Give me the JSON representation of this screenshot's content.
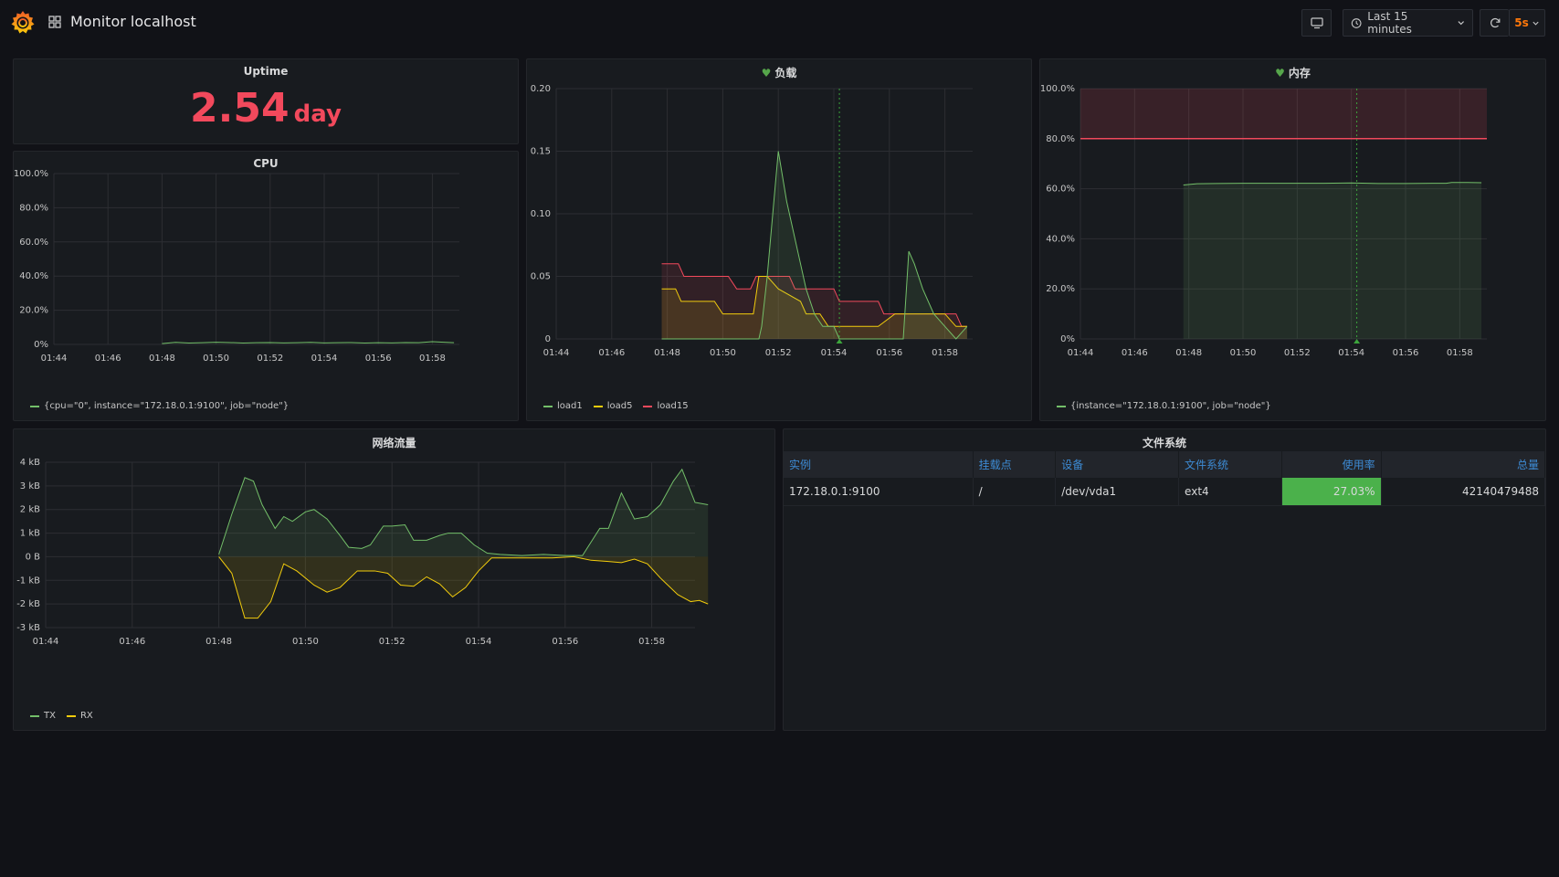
{
  "dashboard": {
    "title": "Monitor localhost",
    "time_range": "Last 15 minutes",
    "refresh": "5s"
  },
  "icons": [
    "grafana-logo-icon",
    "dashboards-grid-icon",
    "tv-mode-icon",
    "clock-icon",
    "chevron-down-icon",
    "refresh-icon"
  ],
  "colors": {
    "green": "#73bf69",
    "yellow": "#f2cc0c",
    "red": "#f2495c",
    "gauge_green": "#4bb14b",
    "link_blue": "#3d8bd4"
  },
  "uptime": {
    "title": "Uptime",
    "value": "2.54",
    "unit": "day"
  },
  "cpu": {
    "title": "CPU"
  },
  "load": {
    "title": "负载"
  },
  "memory": {
    "title": "内存"
  },
  "network": {
    "title": "网络流量"
  },
  "filesystem": {
    "title": "文件系统",
    "columns": [
      "实例",
      "挂载点",
      "设备",
      "文件系统",
      "使用率",
      "总量"
    ],
    "rows": [
      {
        "instance": "172.18.0.1:9100",
        "mountpoint": "/",
        "device": "/dev/vda1",
        "fstype": "ext4",
        "usage": "27.03%",
        "usage_fraction": 0.2703,
        "total": "42140479488"
      }
    ]
  },
  "chart_data": [
    {
      "id": "cpu",
      "type": "line",
      "title": "CPU",
      "x": [
        "01:44",
        "01:46",
        "01:48",
        "01:50",
        "01:52",
        "01:54",
        "01:56",
        "01:58"
      ],
      "y_ticks": [
        "0%",
        "20.0%",
        "40.0%",
        "60.0%",
        "80.0%",
        "100.0%"
      ],
      "ylim": [
        0,
        100
      ],
      "xlim": [
        0,
        15
      ],
      "grid": true,
      "legend_position": "bottom-left",
      "series": [
        {
          "name": "{cpu=\"0\", instance=\"172.18.0.1:9100\", job=\"node\"}",
          "color": "#73bf69",
          "points": [
            [
              4,
              0.5
            ],
            [
              4.5,
              1.2
            ],
            [
              5,
              0.8
            ],
            [
              5.5,
              1.0
            ],
            [
              6,
              1.3
            ],
            [
              6.5,
              1.1
            ],
            [
              7,
              0.8
            ],
            [
              7.5,
              1.0
            ],
            [
              8,
              1.1
            ],
            [
              8.5,
              0.9
            ],
            [
              9,
              1.0
            ],
            [
              9.5,
              1.2
            ],
            [
              10,
              0.9
            ],
            [
              10.5,
              1.0
            ],
            [
              11,
              1.1
            ],
            [
              11.5,
              0.8
            ],
            [
              12,
              1.0
            ],
            [
              12.5,
              0.9
            ],
            [
              13,
              1.1
            ],
            [
              13.5,
              1.0
            ],
            [
              14,
              1.6
            ],
            [
              14.5,
              1.2
            ],
            [
              14.8,
              1.0
            ]
          ]
        }
      ]
    },
    {
      "id": "load",
      "type": "area",
      "title": "负载",
      "x": [
        "01:44",
        "01:46",
        "01:48",
        "01:50",
        "01:52",
        "01:54",
        "01:56",
        "01:58"
      ],
      "y_ticks": [
        "0",
        "0.05",
        "0.10",
        "0.15",
        "0.20"
      ],
      "ylim": [
        0,
        0.2
      ],
      "xlim": [
        0,
        15
      ],
      "grid": true,
      "legend_position": "bottom-left",
      "series": [
        {
          "name": "load1",
          "color": "#73bf69",
          "points": [
            [
              3.8,
              0
            ],
            [
              7.3,
              0
            ],
            [
              7.4,
              0.01
            ],
            [
              7.6,
              0.05
            ],
            [
              7.8,
              0.1
            ],
            [
              8.0,
              0.15
            ],
            [
              8.3,
              0.11
            ],
            [
              8.8,
              0.06
            ],
            [
              9.0,
              0.04
            ],
            [
              9.3,
              0.02
            ],
            [
              9.6,
              0.01
            ],
            [
              10,
              0.01
            ],
            [
              10.2,
              0
            ],
            [
              12.5,
              0
            ],
            [
              12.7,
              0.07
            ],
            [
              12.9,
              0.06
            ],
            [
              13.2,
              0.04
            ],
            [
              13.6,
              0.02
            ],
            [
              14,
              0.01
            ],
            [
              14.4,
              0
            ],
            [
              14.8,
              0.01
            ]
          ]
        },
        {
          "name": "load5",
          "color": "#f2cc0c",
          "points": [
            [
              3.8,
              0.04
            ],
            [
              4.3,
              0.04
            ],
            [
              4.5,
              0.03
            ],
            [
              5.7,
              0.03
            ],
            [
              6.0,
              0.02
            ],
            [
              7.1,
              0.02
            ],
            [
              7.3,
              0.05
            ],
            [
              7.6,
              0.05
            ],
            [
              8.0,
              0.04
            ],
            [
              8.8,
              0.03
            ],
            [
              9.0,
              0.02
            ],
            [
              9.5,
              0.02
            ],
            [
              9.8,
              0.01
            ],
            [
              11,
              0.01
            ],
            [
              11.6,
              0.01
            ],
            [
              12.2,
              0.02
            ],
            [
              14,
              0.02
            ],
            [
              14.4,
              0.01
            ],
            [
              14.8,
              0.01
            ]
          ]
        },
        {
          "name": "load15",
          "color": "#f2495c",
          "points": [
            [
              3.8,
              0.06
            ],
            [
              4.4,
              0.06
            ],
            [
              4.6,
              0.05
            ],
            [
              6.2,
              0.05
            ],
            [
              6.5,
              0.04
            ],
            [
              7.0,
              0.04
            ],
            [
              7.2,
              0.05
            ],
            [
              8.4,
              0.05
            ],
            [
              8.6,
              0.04
            ],
            [
              10,
              0.04
            ],
            [
              10.2,
              0.03
            ],
            [
              11.6,
              0.03
            ],
            [
              11.8,
              0.02
            ],
            [
              14.4,
              0.02
            ],
            [
              14.6,
              0.01
            ],
            [
              14.8,
              0.01
            ]
          ]
        }
      ]
    },
    {
      "id": "memory",
      "type": "area",
      "title": "内存",
      "x": [
        "01:44",
        "01:46",
        "01:48",
        "01:50",
        "01:52",
        "01:54",
        "01:56",
        "01:58"
      ],
      "y_ticks": [
        "0%",
        "20.0%",
        "40.0%",
        "60.0%",
        "80.0%",
        "100.0%"
      ],
      "ylim": [
        0,
        100
      ],
      "xlim": [
        0,
        15
      ],
      "threshold": 80,
      "grid": true,
      "legend_position": "bottom-left",
      "series": [
        {
          "name": "{instance=\"172.18.0.1:9100\", job=\"node\"}",
          "color": "#73bf69",
          "points": [
            [
              3.8,
              61.5
            ],
            [
              4.3,
              62
            ],
            [
              5,
              62.1
            ],
            [
              6,
              62.2
            ],
            [
              7,
              62.2
            ],
            [
              8,
              62.2
            ],
            [
              9,
              62.2
            ],
            [
              10,
              62.3
            ],
            [
              11,
              62.1
            ],
            [
              12,
              62.1
            ],
            [
              13,
              62.2
            ],
            [
              13.5,
              62.2
            ],
            [
              13.7,
              62.5
            ],
            [
              14.3,
              62.5
            ],
            [
              14.8,
              62.4
            ]
          ]
        }
      ]
    },
    {
      "id": "network",
      "type": "area",
      "title": "网络流量",
      "x": [
        "01:44",
        "01:46",
        "01:48",
        "01:50",
        "01:52",
        "01:54",
        "01:56",
        "01:58"
      ],
      "y_ticks": [
        "-3 kB",
        "-2 kB",
        "-1 kB",
        "0 B",
        "1 kB",
        "2 kB",
        "3 kB",
        "4 kB"
      ],
      "ylim": [
        -3,
        4
      ],
      "xlim": [
        0,
        15
      ],
      "grid": true,
      "legend_position": "bottom-left",
      "series": [
        {
          "name": "TX",
          "color": "#73bf69",
          "points": [
            [
              4.0,
              0.1
            ],
            [
              4.3,
              1.8
            ],
            [
              4.6,
              3.35
            ],
            [
              4.8,
              3.2
            ],
            [
              5.0,
              2.2
            ],
            [
              5.3,
              1.2
            ],
            [
              5.5,
              1.7
            ],
            [
              5.7,
              1.5
            ],
            [
              6.0,
              1.9
            ],
            [
              6.2,
              2.0
            ],
            [
              6.5,
              1.6
            ],
            [
              6.8,
              0.9
            ],
            [
              7.0,
              0.4
            ],
            [
              7.3,
              0.35
            ],
            [
              7.5,
              0.5
            ],
            [
              7.8,
              1.3
            ],
            [
              8.0,
              1.3
            ],
            [
              8.3,
              1.35
            ],
            [
              8.5,
              0.7
            ],
            [
              8.8,
              0.7
            ],
            [
              9.1,
              0.9
            ],
            [
              9.3,
              1.0
            ],
            [
              9.6,
              1.0
            ],
            [
              9.9,
              0.5
            ],
            [
              10.2,
              0.15
            ],
            [
              10.5,
              0.1
            ],
            [
              11,
              0.05
            ],
            [
              11.5,
              0.1
            ],
            [
              12,
              0.05
            ],
            [
              12.4,
              0.05
            ],
            [
              12.8,
              1.2
            ],
            [
              13.0,
              1.2
            ],
            [
              13.3,
              2.7
            ],
            [
              13.6,
              1.6
            ],
            [
              13.9,
              1.7
            ],
            [
              14.2,
              2.2
            ],
            [
              14.5,
              3.2
            ],
            [
              14.7,
              3.7
            ],
            [
              15.0,
              2.3
            ],
            [
              15.3,
              2.2
            ]
          ]
        },
        {
          "name": "RX",
          "color": "#f2cc0c",
          "points": [
            [
              4.0,
              0
            ],
            [
              4.3,
              -0.7
            ],
            [
              4.6,
              -2.6
            ],
            [
              4.9,
              -2.6
            ],
            [
              5.2,
              -1.9
            ],
            [
              5.5,
              -0.3
            ],
            [
              5.8,
              -0.6
            ],
            [
              6.2,
              -1.2
            ],
            [
              6.5,
              -1.5
            ],
            [
              6.8,
              -1.3
            ],
            [
              7.2,
              -0.6
            ],
            [
              7.6,
              -0.6
            ],
            [
              7.9,
              -0.7
            ],
            [
              8.2,
              -1.2
            ],
            [
              8.5,
              -1.25
            ],
            [
              8.8,
              -0.85
            ],
            [
              9.1,
              -1.15
            ],
            [
              9.4,
              -1.7
            ],
            [
              9.7,
              -1.3
            ],
            [
              10.0,
              -0.6
            ],
            [
              10.3,
              -0.05
            ],
            [
              10.7,
              -0.05
            ],
            [
              11.2,
              -0.05
            ],
            [
              11.7,
              -0.05
            ],
            [
              12.2,
              0
            ],
            [
              12.6,
              -0.15
            ],
            [
              13.0,
              -0.2
            ],
            [
              13.3,
              -0.25
            ],
            [
              13.6,
              -0.1
            ],
            [
              13.9,
              -0.3
            ],
            [
              14.2,
              -0.9
            ],
            [
              14.6,
              -1.6
            ],
            [
              14.9,
              -1.9
            ],
            [
              15.1,
              -1.85
            ],
            [
              15.3,
              -2.0
            ]
          ]
        }
      ]
    }
  ]
}
